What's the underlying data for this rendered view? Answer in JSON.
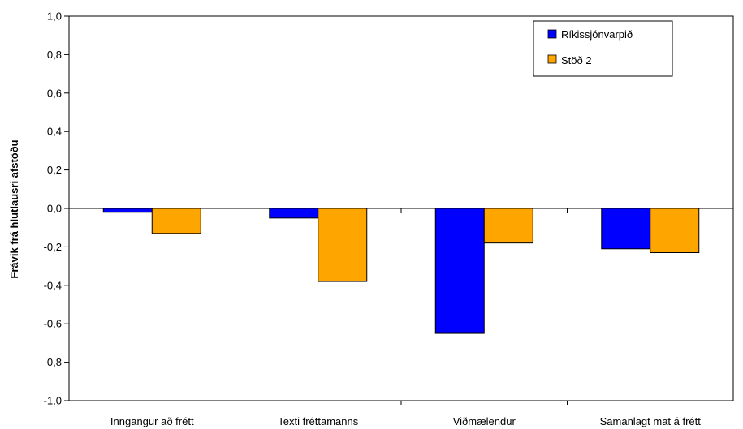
{
  "chart_data": {
    "type": "bar",
    "title": "",
    "xlabel": "",
    "ylabel": "Frávik frá hlutlausri afstöðu",
    "categories": [
      "Inngangur að frétt",
      "Texti fréttamanns",
      "Viðmælendur",
      "Samanlagt mat á frétt"
    ],
    "series": [
      {
        "name": "Ríkissjónvarpið",
        "color": "#0000ff",
        "values": [
          -0.02,
          -0.05,
          -0.65,
          -0.21
        ]
      },
      {
        "name": "Stöð 2",
        "color": "#ffa500",
        "values": [
          -0.13,
          -0.38,
          -0.18,
          -0.23
        ]
      }
    ],
    "ylim": [
      -1.0,
      1.0
    ],
    "yticks": [
      "1,0",
      "0,8",
      "0,6",
      "0,4",
      "0,2",
      "0,0",
      "-0,2",
      "-0,4",
      "-0,6",
      "-0,8",
      "-1,0"
    ],
    "ytick_values": [
      1.0,
      0.8,
      0.6,
      0.4,
      0.2,
      0.0,
      -0.2,
      -0.4,
      -0.6,
      -0.8,
      -1.0
    ],
    "grid": false,
    "legend_position": "top-right"
  }
}
